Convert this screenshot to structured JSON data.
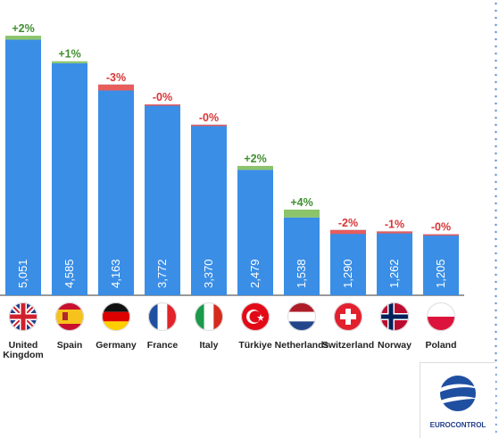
{
  "chart_data": {
    "type": "bar",
    "categories": [
      "United Kingdom",
      "Spain",
      "Germany",
      "France",
      "Italy",
      "Türkiye",
      "Netherlands",
      "Switzerland",
      "Norway",
      "Poland"
    ],
    "values": [
      5051,
      4585,
      4163,
      3772,
      3370,
      2479,
      1538,
      1290,
      1262,
      1205
    ],
    "value_labels": [
      "5,051",
      "4,585",
      "4,163",
      "3,772",
      "3,370",
      "2,479",
      "1,538",
      "1,290",
      "1,262",
      "1,205"
    ],
    "changes": [
      "+2%",
      "+1%",
      "-3%",
      "-0%",
      "-0%",
      "+2%",
      "+4%",
      "-2%",
      "-1%",
      "-0%"
    ],
    "change_pct": [
      2,
      1,
      -3,
      -0.1,
      -0.1,
      2,
      4,
      -2,
      -1,
      -0.1
    ],
    "flags": [
      "uk-flag-icon",
      "spain-flag-icon",
      "germany-flag-icon",
      "france-flag-icon",
      "italy-flag-icon",
      "turkiye-flag-icon",
      "netherlands-flag-icon",
      "switzerland-flag-icon",
      "norway-flag-icon",
      "poland-flag-icon"
    ],
    "ylim": [
      0,
      5200
    ],
    "grid": false,
    "colors": {
      "bar": "#3a8ee6",
      "increase": "#8bc46b",
      "decrease": "#e85c5c",
      "increase_text": "#3f8f2e",
      "decrease_text": "#d83535"
    }
  },
  "logo": {
    "text": "EUROCONTROL"
  }
}
